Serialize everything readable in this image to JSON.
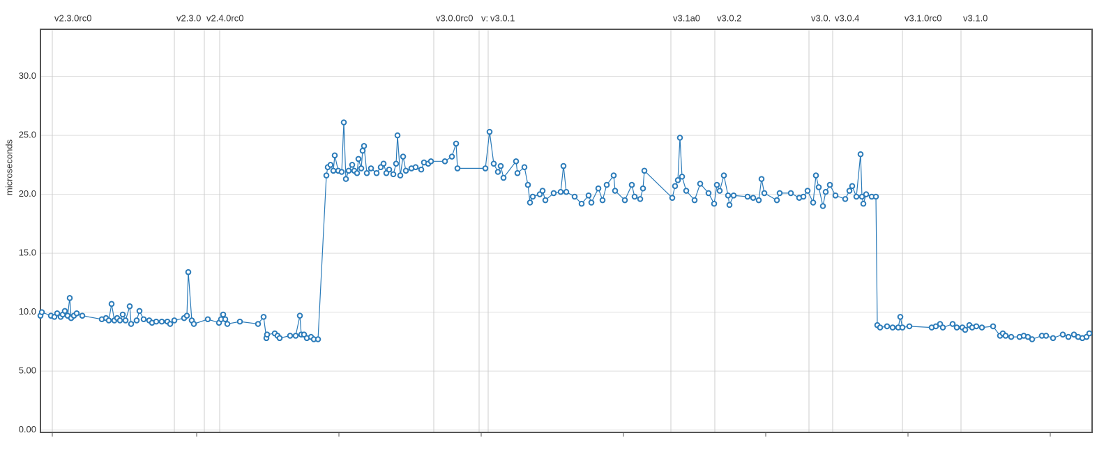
{
  "chart_data": {
    "type": "line",
    "y_label": "microseconds",
    "color": "#2b7bb9",
    "grid": true,
    "xlim": [
      58,
      1566
    ],
    "xticks": [
      75,
      282,
      486,
      690,
      894,
      1098,
      1302,
      1506
    ],
    "ylim": [
      -0.2,
      34
    ],
    "yticks": [
      {
        "value": 0,
        "label": "0.00"
      },
      {
        "value": 5,
        "label": "5.00"
      },
      {
        "value": 10,
        "label": "10.0"
      },
      {
        "value": 15,
        "label": "15.0"
      },
      {
        "value": 20,
        "label": "20.0"
      },
      {
        "value": 25,
        "label": "25.0"
      },
      {
        "value": 30,
        "label": "30.0"
      }
    ],
    "version_markers": [
      {
        "x": 75,
        "label": "v2.3.0rc0"
      },
      {
        "x": 250,
        "label": "v2.3.0"
      },
      {
        "x": 293,
        "label": "v2.4.0rc0"
      },
      {
        "x": 315,
        "label": null
      },
      {
        "x": 622,
        "label": "v3.0.0rc0"
      },
      {
        "x": 687,
        "label": "v:"
      },
      {
        "x": 700,
        "label": "v3.0.1"
      },
      {
        "x": 962,
        "label": "v3.1a0"
      },
      {
        "x": 1025,
        "label": "v3.0.2"
      },
      {
        "x": 1160,
        "label": "v3.0."
      },
      {
        "x": 1194,
        "label": "v3.0.4"
      },
      {
        "x": 1294,
        "label": "v3.1.0rc0"
      },
      {
        "x": 1378,
        "label": "v3.1.0"
      }
    ],
    "x": [
      58,
      60,
      73,
      78,
      82,
      87,
      90,
      93,
      97,
      100,
      102,
      106,
      110,
      118,
      146,
      152,
      156,
      160,
      164,
      168,
      172,
      176,
      180,
      186,
      188,
      196,
      200,
      206,
      214,
      218,
      224,
      232,
      240,
      244,
      250,
      264,
      268,
      270,
      275,
      278,
      298,
      314,
      317,
      320,
      323,
      326,
      344,
      370,
      378,
      382,
      383,
      394,
      398,
      401,
      416,
      424,
      430,
      432,
      436,
      440,
      446,
      450,
      456,
      468,
      470,
      474,
      478,
      480,
      485,
      490,
      493,
      496,
      500,
      505,
      508,
      512,
      514,
      518,
      520,
      522,
      526,
      532,
      540,
      546,
      550,
      554,
      558,
      564,
      568,
      570,
      574,
      578,
      582,
      590,
      596,
      604,
      608,
      614,
      618,
      638,
      648,
      654,
      656,
      696,
      702,
      708,
      714,
      718,
      722,
      740,
      742,
      752,
      757,
      760,
      764,
      774,
      778,
      782,
      794,
      804,
      808,
      812,
      824,
      834,
      844,
      848,
      858,
      864,
      870,
      880,
      882,
      896,
      906,
      910,
      918,
      922,
      924,
      964,
      968,
      972,
      975,
      978,
      984,
      996,
      1004,
      1016,
      1024,
      1028,
      1032,
      1038,
      1044,
      1046,
      1052,
      1072,
      1080,
      1088,
      1092,
      1096,
      1114,
      1118,
      1134,
      1146,
      1152,
      1158,
      1166,
      1170,
      1174,
      1180,
      1184,
      1190,
      1198,
      1212,
      1218,
      1222,
      1228,
      1234,
      1236,
      1238,
      1242,
      1250,
      1256,
      1258,
      1262,
      1272,
      1280,
      1288,
      1291,
      1294,
      1304,
      1336,
      1342,
      1348,
      1352,
      1366,
      1372,
      1380,
      1384,
      1390,
      1394,
      1400,
      1408,
      1424,
      1434,
      1438,
      1442,
      1450,
      1462,
      1468,
      1474,
      1480,
      1494,
      1500,
      1510,
      1524,
      1532,
      1540,
      1546,
      1552,
      1558,
      1562
    ],
    "values": [
      9.7,
      10.0,
      9.7,
      9.6,
      9.9,
      9.6,
      9.8,
      10.1,
      9.7,
      11.2,
      9.5,
      9.7,
      9.9,
      9.7,
      9.4,
      9.5,
      9.3,
      10.7,
      9.3,
      9.5,
      9.3,
      9.8,
      9.3,
      10.5,
      9.0,
      9.3,
      10.1,
      9.4,
      9.3,
      9.1,
      9.2,
      9.2,
      9.2,
      9.0,
      9.3,
      9.5,
      9.7,
      13.4,
      9.3,
      9.0,
      9.4,
      9.1,
      9.4,
      9.8,
      9.4,
      9.0,
      9.2,
      9.0,
      9.6,
      7.8,
      8.1,
      8.2,
      8.0,
      7.8,
      8.0,
      8.0,
      9.7,
      8.1,
      8.1,
      7.8,
      7.9,
      7.7,
      7.7,
      21.6,
      22.3,
      22.5,
      22.0,
      23.3,
      22.0,
      21.9,
      26.1,
      21.3,
      22.0,
      22.5,
      22.0,
      21.8,
      23.0,
      22.2,
      23.7,
      24.1,
      21.8,
      22.2,
      21.8,
      22.3,
      22.6,
      21.8,
      22.1,
      21.7,
      22.6,
      25.0,
      21.6,
      23.2,
      22.0,
      22.2,
      22.3,
      22.1,
      22.7,
      22.6,
      22.8,
      22.8,
      23.2,
      24.3,
      22.2,
      22.2,
      25.3,
      22.6,
      21.9,
      22.4,
      21.4,
      22.8,
      21.8,
      22.3,
      20.8,
      19.3,
      19.8,
      20.0,
      20.3,
      19.5,
      20.1,
      20.2,
      22.4,
      20.2,
      19.8,
      19.2,
      19.9,
      19.3,
      20.5,
      19.5,
      20.8,
      21.6,
      20.3,
      19.5,
      20.8,
      19.8,
      19.6,
      20.5,
      22.0,
      19.7,
      20.7,
      21.2,
      24.8,
      21.5,
      20.3,
      19.5,
      20.9,
      20.1,
      19.2,
      20.8,
      20.3,
      21.6,
      19.9,
      19.1,
      19.9,
      19.8,
      19.7,
      19.5,
      21.3,
      20.1,
      19.5,
      20.1,
      20.1,
      19.7,
      19.8,
      20.3,
      19.3,
      21.6,
      20.6,
      19.0,
      20.2,
      20.8,
      19.9,
      19.6,
      20.3,
      20.7,
      19.8,
      23.4,
      19.8,
      19.2,
      20.0,
      19.8,
      19.8,
      8.9,
      8.7,
      8.8,
      8.7,
      8.7,
      9.6,
      8.7,
      8.8,
      8.7,
      8.8,
      9.0,
      8.7,
      9.0,
      8.7,
      8.7,
      8.5,
      8.9,
      8.7,
      8.8,
      8.7,
      8.8,
      8.0,
      8.2,
      8.0,
      7.9,
      7.9,
      8.0,
      7.9,
      7.7,
      8.0,
      8.0,
      7.8,
      8.1,
      7.9,
      8.1,
      7.9,
      7.8,
      7.9,
      8.2
    ]
  }
}
